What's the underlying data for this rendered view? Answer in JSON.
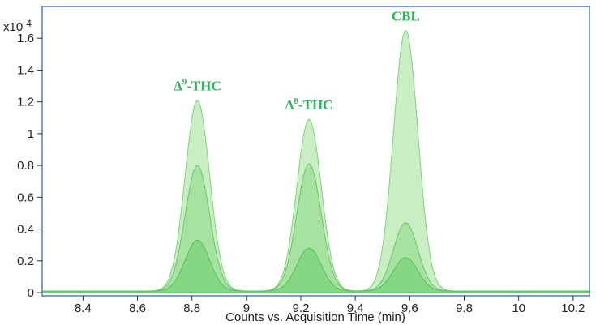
{
  "chart_data": {
    "type": "area",
    "title": "",
    "xlabel": "Counts vs. Acquisition Time (min)",
    "ylabel": "",
    "y_multiplier": "x10",
    "y_exponent": "4",
    "xlim": [
      8.25,
      10.26
    ],
    "ylim": [
      -0.02,
      1.8
    ],
    "x_ticks": [
      "8.4",
      "8.6",
      "8.8",
      "9",
      "9.2",
      "9.4",
      "9.6",
      "9.8",
      "10",
      "10.2"
    ],
    "y_ticks": [
      "0",
      "0.2",
      "0.4",
      "0.6",
      "0.8",
      "1",
      "1.2",
      "1.4",
      "1.6"
    ],
    "grid": false,
    "series_colors": [
      "#b8e8b0",
      "#8fdb8a",
      "#6fd170"
    ],
    "peaks": [
      {
        "label_main": "Δ",
        "label_sup": "9",
        "label_rest": "-THC",
        "x": 8.82,
        "heights": [
          1.2,
          0.79,
          0.32
        ]
      },
      {
        "label_main": "Δ",
        "label_sup": "8",
        "label_rest": "-THC",
        "x": 9.23,
        "heights": [
          1.08,
          0.8,
          0.27
        ]
      },
      {
        "label_main": "CBL",
        "label_sup": "",
        "label_rest": "",
        "x": 9.585,
        "heights": [
          1.64,
          0.43,
          0.21
        ]
      }
    ],
    "peak_width": 0.045,
    "baseline": 0.02
  }
}
